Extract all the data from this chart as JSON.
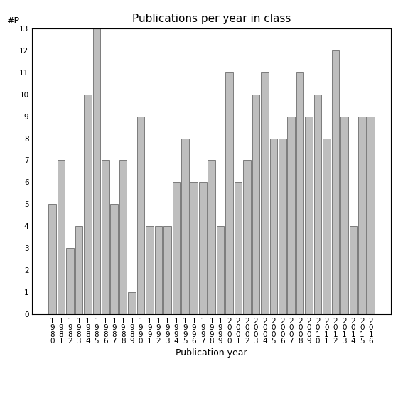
{
  "title": "Publications per year in class",
  "xlabel": "Publication year",
  "ylabel": "#P",
  "categories": [
    "1\n9\n8\n0",
    "1\n9\n8\n1",
    "1\n9\n8\n2",
    "1\n9\n8\n3",
    "1\n9\n8\n4",
    "1\n9\n8\n5",
    "1\n9\n8\n6",
    "1\n9\n8\n7",
    "1\n9\n8\n8",
    "1\n9\n8\n9",
    "1\n9\n9\n0",
    "1\n9\n9\n1",
    "1\n9\n9\n2",
    "1\n9\n9\n3",
    "1\n9\n9\n4",
    "1\n9\n9\n5",
    "1\n9\n9\n6",
    "1\n9\n9\n7",
    "1\n9\n9\n8",
    "1\n9\n9\n9",
    "2\n0\n0\n0",
    "2\n0\n0\n1",
    "2\n0\n0\n2",
    "2\n0\n0\n3",
    "2\n0\n0\n4",
    "2\n0\n0\n5",
    "2\n0\n0\n6",
    "2\n0\n0\n7",
    "2\n0\n0\n8",
    "2\n0\n0\n9",
    "2\n0\n1\n0",
    "2\n0\n1\n1",
    "2\n0\n1\n2",
    "2\n0\n1\n3",
    "2\n0\n1\n4",
    "2\n0\n1\n5",
    "2\n0\n1\n6"
  ],
  "values": [
    5,
    7,
    3,
    4,
    10,
    13,
    7,
    5,
    7,
    1,
    9,
    4,
    4,
    4,
    6,
    8,
    6,
    6,
    7,
    4,
    11,
    6,
    7,
    10,
    11,
    8,
    8,
    9,
    11,
    9,
    10,
    8,
    12,
    9,
    4,
    9,
    9
  ],
  "bar_color": "#bebebe",
  "bar_edge_color": "#555555",
  "ylim": [
    0,
    13
  ],
  "yticks": [
    0,
    1,
    2,
    3,
    4,
    5,
    6,
    7,
    8,
    9,
    10,
    11,
    12,
    13
  ],
  "tick_fontsize": 7.5,
  "label_fontsize": 9,
  "title_fontsize": 11,
  "bar_width": 0.85,
  "figsize": [
    5.67,
    5.67
  ],
  "dpi": 100
}
